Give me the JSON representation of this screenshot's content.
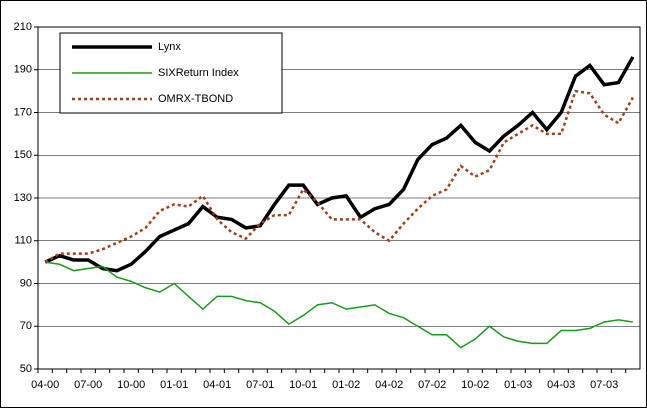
{
  "chart_data": {
    "type": "line",
    "categories": [
      "04-00",
      null,
      null,
      "07-00",
      null,
      null,
      "10-00",
      null,
      null,
      "01-01",
      null,
      null,
      "04-01",
      null,
      null,
      "07-01",
      null,
      null,
      "10-01",
      null,
      null,
      "01-02",
      null,
      null,
      "04-02",
      null,
      null,
      "07-02",
      null,
      null,
      "10-02",
      null,
      null,
      "01-03",
      null,
      null,
      "04-03",
      null,
      null,
      "07-03",
      null,
      null
    ],
    "series": [
      {
        "name": "Lynx",
        "color": "#000000",
        "dash": "solid",
        "values": [
          100,
          103,
          101,
          101,
          97,
          96,
          99,
          105,
          112,
          115,
          118,
          126,
          121,
          120,
          116,
          117,
          127,
          136,
          136,
          127,
          130,
          131,
          121,
          125,
          127,
          134,
          148,
          155,
          158,
          164,
          156,
          152,
          159,
          164,
          170,
          162,
          170,
          187,
          192,
          183,
          184,
          196
        ]
      },
      {
        "name": "SIXReturn Index",
        "color": "#1a9a1a",
        "dash": "solid",
        "values": [
          100,
          99,
          96,
          97,
          98,
          93,
          91,
          88,
          86,
          90,
          84,
          78,
          84,
          84,
          82,
          81,
          77,
          71,
          75,
          80,
          81,
          78,
          79,
          80,
          76,
          74,
          70,
          66,
          66,
          60,
          64,
          70,
          65,
          63,
          62,
          62,
          68,
          68,
          69,
          72,
          73,
          72
        ]
      },
      {
        "name": "OMRX-TBOND",
        "color": "#a0401a",
        "dash": "dotted",
        "values": [
          100,
          104,
          104,
          104,
          106,
          109,
          112,
          116,
          124,
          127,
          126,
          131,
          120,
          114,
          111,
          118,
          122,
          122,
          134,
          128,
          120,
          120,
          120,
          114,
          110,
          118,
          125,
          131,
          134,
          145,
          140,
          143,
          156,
          160,
          164,
          160,
          160,
          180,
          179,
          169,
          165,
          177
        ]
      }
    ],
    "ylim": [
      50,
      210
    ],
    "yticks": [
      50,
      70,
      90,
      110,
      130,
      150,
      170,
      190,
      210
    ],
    "grid": true,
    "legend": "top-left"
  }
}
